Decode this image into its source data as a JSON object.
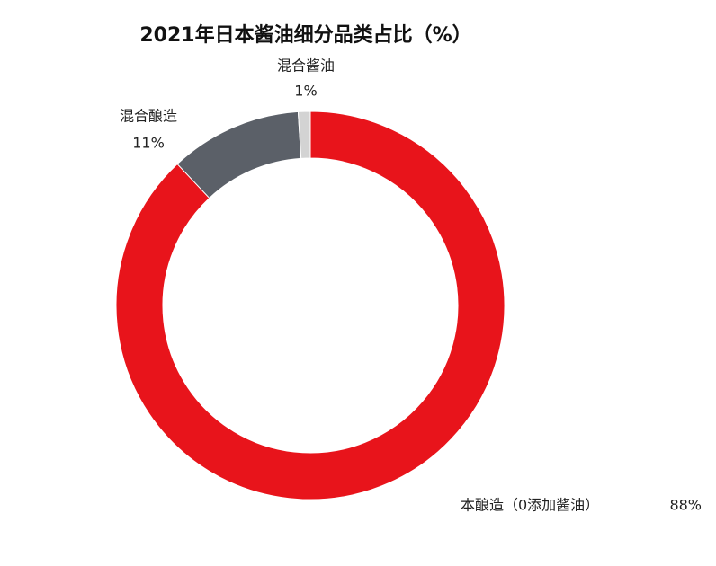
{
  "chart_data": {
    "type": "donut",
    "title": "2021年日本酱油细分品类占比（%）",
    "categories": [
      "本酿造（0添加酱油）",
      "混合酿造",
      "混合酱油"
    ],
    "values": [
      88,
      11,
      1
    ],
    "value_labels": [
      "88%",
      "11%",
      "1%"
    ],
    "colors": [
      "#e8141b",
      "#5b6068",
      "#d3d3d3"
    ]
  }
}
